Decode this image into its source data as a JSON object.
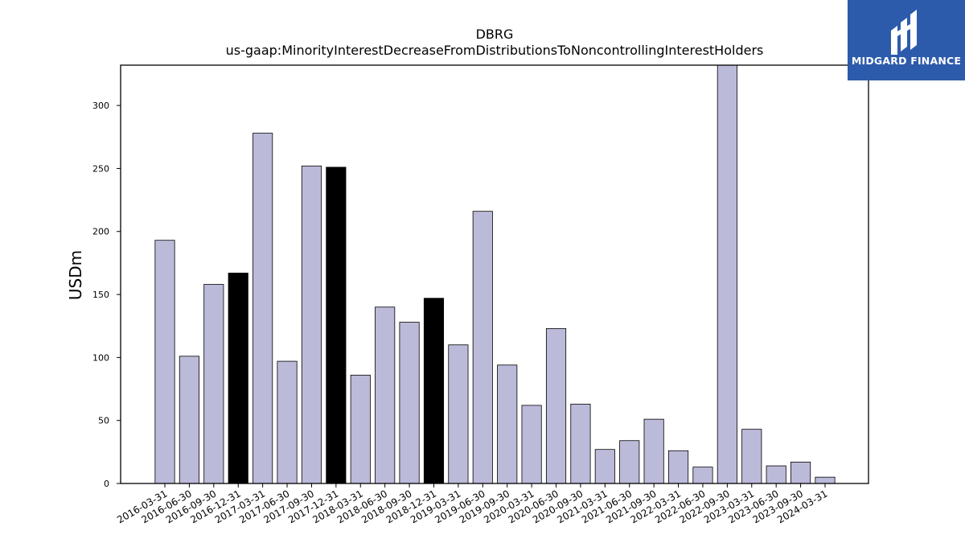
{
  "chart_data": {
    "type": "bar",
    "title": "DBRG",
    "subtitle": "us-gaap:MinorityInterestDecreaseFromDistributionsToNoncontrollingInterestHolders",
    "xlabel": "",
    "ylabel": "USDm",
    "ylim": [
      0,
      332
    ],
    "yticks": [
      0,
      50,
      100,
      150,
      200,
      250,
      300
    ],
    "grid": false,
    "categories": [
      "2016-03-31",
      "2016-06-30",
      "2016-09-30",
      "2016-12-31",
      "2017-03-31",
      "2017-06-30",
      "2017-09-30",
      "2017-12-31",
      "2018-03-31",
      "2018-06-30",
      "2018-09-30",
      "2018-12-31",
      "2019-03-31",
      "2019-06-30",
      "2019-09-30",
      "2020-03-31",
      "2020-06-30",
      "2020-09-30",
      "2021-03-31",
      "2021-06-30",
      "2021-09-30",
      "2022-03-31",
      "2022-06-30",
      "2022-09-30",
      "2023-03-31",
      "2023-06-30",
      "2023-09-30",
      "2024-03-31"
    ],
    "values": [
      193,
      101,
      158,
      167,
      278,
      97,
      252,
      251,
      86,
      140,
      128,
      147,
      110,
      216,
      94,
      62,
      123,
      63,
      27,
      34,
      51,
      26,
      13,
      332,
      43,
      14,
      17,
      5
    ],
    "highlighted": [
      false,
      false,
      false,
      true,
      false,
      false,
      false,
      true,
      false,
      false,
      false,
      true,
      false,
      false,
      false,
      false,
      false,
      false,
      false,
      false,
      false,
      false,
      false,
      false,
      false,
      false,
      false,
      false
    ],
    "colors": {
      "bar": "#bcbad9",
      "highlight": "#000000",
      "edge": "#000000"
    }
  },
  "logo": {
    "text": "MIDGARD FINANCE",
    "background": "#2d5bab"
  }
}
